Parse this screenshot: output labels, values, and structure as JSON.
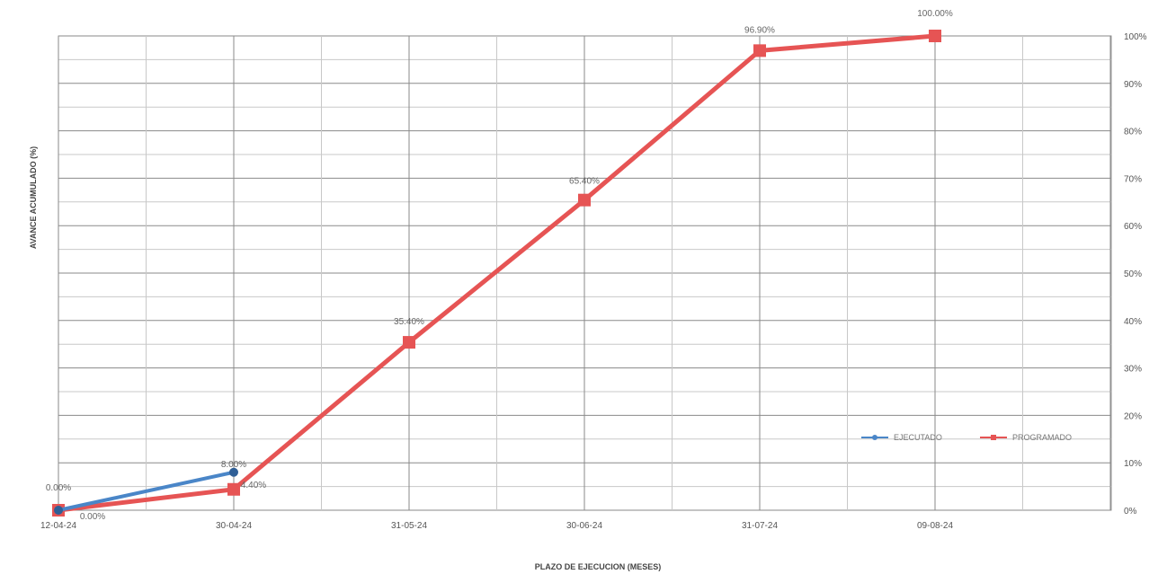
{
  "chart_data": {
    "type": "line",
    "x_tick_labels": [
      "12-04-24",
      "30-04-24",
      "31-05-24",
      "30-06-24",
      "31-07-24",
      "09-08-24"
    ],
    "xlabel": "PLAZO DE EJECUCION (MESES)",
    "ylabel": "AVANCE ACUMULADO (%)",
    "ylim": [
      0,
      100
    ],
    "y_tick_labels": [
      "0%",
      "10%",
      "20%",
      "30%",
      "40%",
      "50%",
      "60%",
      "70%",
      "80%",
      "90%",
      "100%"
    ],
    "y_axis_side": "right",
    "grid": true,
    "legend_position": "bottom-right",
    "series": [
      {
        "name": "EJECUTADO",
        "color": "#4a86c8",
        "marker": "circle",
        "values": [
          0,
          8.0
        ],
        "labels": [
          "0.00%",
          "8.00%"
        ]
      },
      {
        "name": "PROGRAMADO",
        "color": "#e65454",
        "marker": "square",
        "values": [
          0,
          4.4,
          35.4,
          65.4,
          96.9,
          100.0
        ],
        "labels": [
          "0.00%",
          "4.40%",
          "35.40%",
          "65.40%",
          "96.90%",
          "100.00%"
        ]
      }
    ]
  }
}
